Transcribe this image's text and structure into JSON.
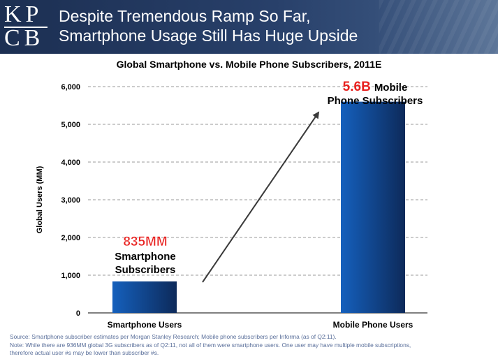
{
  "header": {
    "logo_top": "KP",
    "logo_bottom": "CB",
    "title_line1": "Despite Tremendous Ramp So Far,",
    "title_line2": "Smartphone Usage Still Has Huge Upside"
  },
  "chart_data": {
    "type": "bar",
    "title": "Global Smartphone vs. Mobile Phone Subscribers, 2011E",
    "categories": [
      "Smartphone Users",
      "Mobile Phone Users"
    ],
    "values": [
      835,
      5600
    ],
    "xlabel": "",
    "ylabel": "Global Users (MM)",
    "ylim": [
      0,
      6000
    ],
    "yticks": [
      0,
      1000,
      2000,
      3000,
      4000,
      5000,
      6000
    ],
    "ytick_labels": [
      "0",
      "1,000",
      "2,000",
      "3,000",
      "4,000",
      "5,000",
      "6,000"
    ],
    "grid": true,
    "bar_color": "#1560bd",
    "bar_color_dark": "#0d2a5a",
    "annotations": [
      {
        "highlight": "835MM",
        "line1": "Smartphone",
        "line2": "Subscribers"
      },
      {
        "highlight": "5.6B",
        "line1": "Mobile",
        "line2": "Phone Subscribers"
      }
    ],
    "highlight_color": "#e8211f"
  },
  "footnotes": [
    "Source: Smartphone subscriber estimates per Morgan Stanley Research; Mobile phone subscribers per Informa (as of Q2:11).",
    "Note: While there are 936MM global 3G subscribers as of Q2:11, not all of them were smartphone users. One user may have multiple mobile subscriptions,",
    "therefore actual user #s may be lower than subscriber #s."
  ]
}
